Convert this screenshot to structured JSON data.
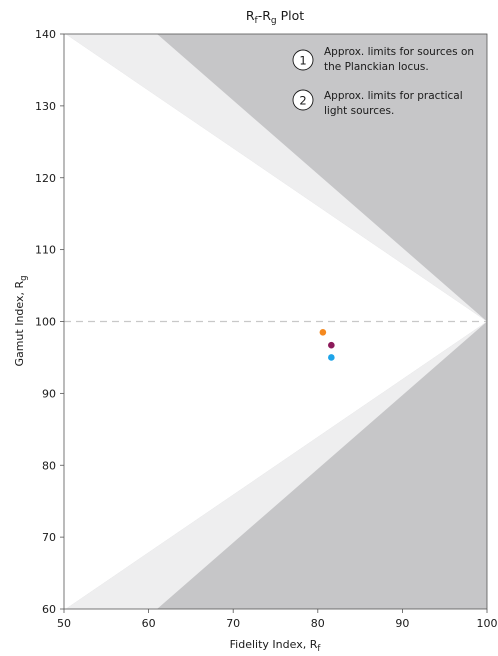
{
  "chart_data": {
    "type": "scatter",
    "title": {
      "main": "R",
      "sub1": "f",
      "mid": "-R",
      "sub2": "g",
      "tail": " Plot"
    },
    "xlabel": {
      "main": "Fidelity Index, R",
      "sub": "f"
    },
    "ylabel": {
      "main": "Gamut Index, R",
      "sub": "g"
    },
    "xlim": [
      50,
      100
    ],
    "ylim": [
      60,
      140
    ],
    "x_ticks": [
      50,
      60,
      70,
      80,
      90,
      100
    ],
    "y_ticks": [
      60,
      70,
      80,
      90,
      100,
      110,
      120,
      130,
      140
    ],
    "x_tick_labels": [
      "50",
      "60",
      "70",
      "80",
      "90",
      "100"
    ],
    "y_tick_labels": [
      "60",
      "70",
      "80",
      "90",
      "100",
      "110",
      "120",
      "130",
      "140"
    ],
    "reference_line_y": 100,
    "grid": false,
    "regions": {
      "outer_limit_top": [
        [
          50.2,
          140
        ],
        [
          61.0,
          140
        ],
        [
          100,
          100
        ]
      ],
      "outer_limit_bottom": [
        [
          50.2,
          60
        ],
        [
          61.0,
          60
        ],
        [
          100,
          100
        ]
      ],
      "inner_limit_top": [
        [
          50.2,
          140
        ],
        [
          100,
          100
        ]
      ],
      "inner_limit_bottom": [
        [
          50.2,
          60
        ],
        [
          100,
          100
        ]
      ]
    },
    "points": [
      {
        "x": 80.6,
        "y": 98.5,
        "color": "#f5891f"
      },
      {
        "x": 81.6,
        "y": 96.7,
        "color": "#8c1a5a"
      },
      {
        "x": 81.6,
        "y": 95.0,
        "color": "#1ea4e9"
      }
    ],
    "annotations": [
      {
        "number": "1",
        "lines": [
          "Approx. limits for sources on",
          "the Planckian locus."
        ]
      },
      {
        "number": "2",
        "lines": [
          "Approx. limits for practical",
          "light sources."
        ]
      }
    ]
  },
  "colors": {
    "practical_region": "#c6c6c8",
    "planckian_region": "#eeeeef",
    "reference_line": "#c8c8c8",
    "axis": "#555555"
  }
}
